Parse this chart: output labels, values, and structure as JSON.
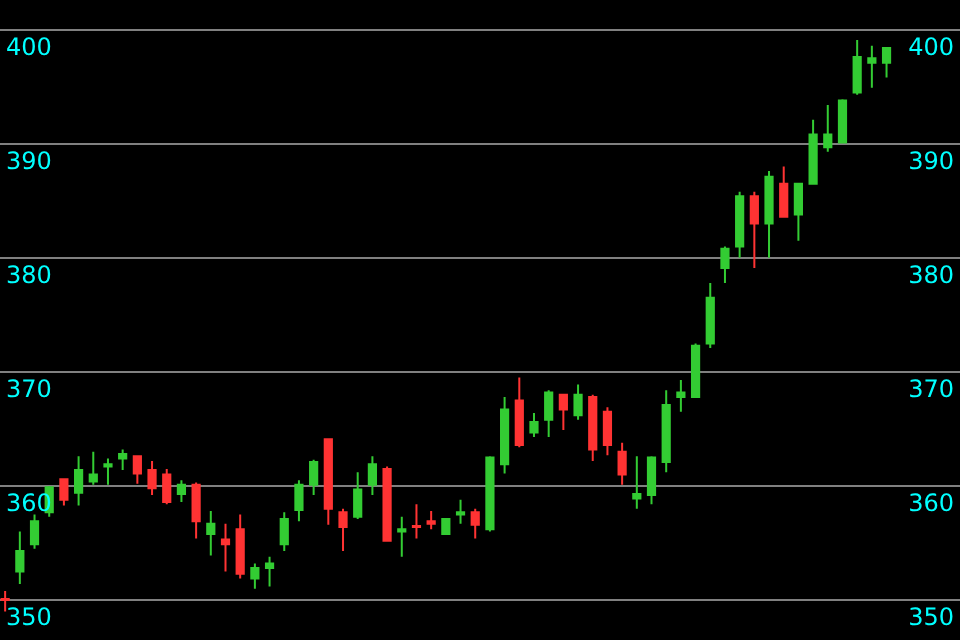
{
  "chart_data": {
    "type": "candlestick",
    "categories": [
      null,
      null,
      null,
      null,
      null,
      null,
      null,
      null,
      null,
      null,
      null,
      null,
      null,
      null,
      null,
      null,
      null,
      null,
      null,
      null,
      null,
      null,
      null,
      null,
      null,
      null,
      null,
      null,
      null,
      null,
      null,
      null,
      null,
      null,
      null,
      null,
      null,
      null,
      null,
      null,
      null,
      null,
      null,
      null,
      null,
      null,
      null,
      null,
      null,
      null,
      null,
      null,
      null,
      null,
      null,
      null,
      null,
      null,
      null,
      null,
      null
    ],
    "ohlc": [
      [
        350.1,
        350.8,
        349.0,
        350.0
      ],
      [
        352.5,
        356.0,
        351.4,
        354.3
      ],
      [
        354.9,
        357.5,
        354.5,
        356.9
      ],
      [
        357.7,
        360.0,
        357.3,
        359.9
      ],
      [
        360.6,
        360.6,
        358.3,
        358.8
      ],
      [
        359.4,
        362.6,
        358.3,
        361.4
      ],
      [
        360.4,
        363.0,
        360.1,
        361.0
      ],
      [
        361.7,
        362.4,
        360.1,
        361.9
      ],
      [
        362.4,
        363.2,
        361.4,
        362.8
      ],
      [
        362.6,
        362.6,
        360.2,
        361.1
      ],
      [
        361.4,
        362.2,
        359.2,
        359.8
      ],
      [
        361.0,
        361.5,
        358.4,
        358.6
      ],
      [
        359.3,
        360.5,
        358.6,
        360.1
      ],
      [
        360.1,
        360.3,
        355.4,
        356.9
      ],
      [
        355.8,
        357.8,
        353.9,
        356.7
      ],
      [
        355.3,
        356.7,
        352.5,
        354.9
      ],
      [
        356.2,
        357.5,
        351.9,
        352.3
      ],
      [
        351.9,
        353.2,
        351.0,
        352.8
      ],
      [
        352.8,
        353.8,
        351.2,
        353.2
      ],
      [
        354.9,
        357.7,
        354.3,
        357.1
      ],
      [
        357.9,
        360.5,
        356.9,
        360.1
      ],
      [
        360.1,
        362.3,
        359.2,
        362.1
      ],
      [
        364.1,
        364.1,
        356.6,
        358.0
      ],
      [
        357.7,
        358.0,
        354.3,
        356.4
      ],
      [
        357.3,
        361.2,
        357.1,
        359.7
      ],
      [
        360.1,
        362.6,
        359.2,
        361.9
      ],
      [
        361.5,
        361.7,
        355.2,
        355.2
      ],
      [
        356.0,
        357.3,
        353.8,
        356.2
      ],
      [
        356.5,
        358.4,
        355.4,
        356.4
      ],
      [
        356.9,
        357.8,
        356.2,
        356.7
      ],
      [
        355.8,
        357.1,
        355.7,
        357.1
      ],
      [
        357.5,
        358.8,
        356.7,
        357.7
      ],
      [
        357.7,
        358.0,
        355.4,
        356.6
      ],
      [
        356.2,
        362.6,
        356.0,
        362.5
      ],
      [
        361.9,
        367.8,
        361.1,
        366.7
      ],
      [
        367.5,
        369.5,
        363.4,
        363.6
      ],
      [
        364.7,
        366.4,
        364.3,
        365.6
      ],
      [
        365.8,
        368.4,
        364.3,
        368.2
      ],
      [
        368.0,
        368.0,
        364.9,
        366.7
      ],
      [
        366.2,
        368.9,
        365.8,
        368.0
      ],
      [
        367.8,
        368.0,
        362.2,
        363.2
      ],
      [
        366.5,
        366.9,
        362.7,
        363.6
      ],
      [
        363.0,
        363.8,
        360.1,
        361.0
      ],
      [
        358.9,
        362.6,
        358.0,
        359.3
      ],
      [
        359.2,
        362.6,
        358.4,
        362.5
      ],
      [
        362.1,
        368.4,
        361.2,
        367.1
      ],
      [
        367.8,
        369.3,
        366.5,
        368.2
      ],
      [
        367.8,
        372.5,
        367.8,
        372.3
      ],
      [
        372.5,
        377.8,
        372.1,
        376.5
      ],
      [
        379.1,
        381.0,
        377.8,
        380.8
      ],
      [
        381.0,
        385.8,
        380.0,
        385.4
      ],
      [
        385.4,
        385.8,
        379.1,
        383.0
      ],
      [
        383.0,
        387.6,
        380.0,
        387.1
      ],
      [
        386.5,
        388.0,
        383.6,
        383.6
      ],
      [
        383.8,
        386.5,
        381.5,
        386.5
      ],
      [
        386.5,
        392.1,
        386.5,
        390.8
      ],
      [
        389.7,
        393.4,
        389.3,
        390.8
      ],
      [
        390.1,
        393.9,
        390.1,
        393.8
      ],
      [
        394.5,
        399.1,
        394.3,
        397.6
      ],
      [
        397.1,
        398.6,
        394.9,
        397.5
      ],
      [
        397.1,
        398.4,
        395.8,
        398.4
      ]
    ],
    "colors": [
      "#ff3333",
      "#33cc33",
      "#33cc33",
      "#33cc33",
      "#ff3333",
      "#33cc33",
      "#33cc33",
      "#33cc33",
      "#33cc33",
      "#ff3333",
      "#ff3333",
      "#ff3333",
      "#33cc33",
      "#ff3333",
      "#33cc33",
      "#ff3333",
      "#ff3333",
      "#33cc33",
      "#33cc33",
      "#33cc33",
      "#33cc33",
      "#33cc33",
      "#ff3333",
      "#ff3333",
      "#33cc33",
      "#33cc33",
      "#ff3333",
      "#33cc33",
      "#ff3333",
      "#ff3333",
      "#33cc33",
      "#33cc33",
      "#ff3333",
      "#33cc33",
      "#33cc33",
      "#ff3333",
      "#33cc33",
      "#33cc33",
      "#ff3333",
      "#33cc33",
      "#ff3333",
      "#ff3333",
      "#ff3333",
      "#33cc33",
      "#33cc33",
      "#33cc33",
      "#33cc33",
      "#33cc33",
      "#33cc33",
      "#33cc33",
      "#33cc33",
      "#ff3333",
      "#33cc33",
      "#ff3333",
      "#33cc33",
      "#33cc33",
      "#33cc33",
      "#33cc33",
      "#33cc33",
      "#33cc33",
      "#33cc33"
    ],
    "ylim": [
      346.5,
      402.6
    ],
    "yticks": [
      350,
      360,
      370,
      380,
      390,
      400
    ],
    "y2lim": [
      346.5,
      402.6
    ],
    "y2ticks": [
      350,
      360,
      370,
      380,
      390,
      400
    ],
    "grid": "y",
    "legend": false,
    "tick_labels": "y"
  }
}
